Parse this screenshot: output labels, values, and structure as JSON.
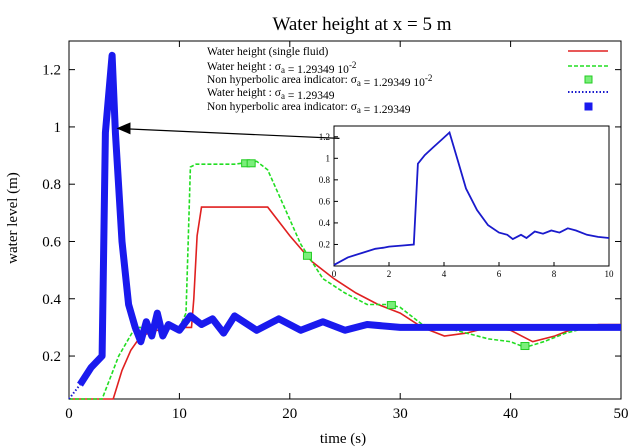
{
  "chart_data": {
    "type": "line",
    "title": "Water height at x = 5 m",
    "xlabel": "time (s)",
    "ylabel": "water level (m)",
    "xlim": [
      0,
      50
    ],
    "ylim": [
      0.05,
      1.3
    ],
    "xticks": [
      0,
      10,
      20,
      30,
      40,
      50
    ],
    "yticks": [
      0.2,
      0.4,
      0.6,
      0.8,
      1,
      1.2
    ],
    "xtick_labels": [
      "0",
      "10",
      "20",
      "30",
      "40",
      "50"
    ],
    "ytick_labels": [
      "0.2",
      "0.4",
      "0.6",
      "0.8",
      "1",
      "1.2"
    ],
    "legend_position": "top-right",
    "legend": [
      {
        "text": "Water height (single fluid)",
        "style": "solid",
        "color": "#e02020"
      },
      {
        "text": "Water height : σa = 1.29349 10^-2",
        "style": "dashed",
        "color": "#22dd22"
      },
      {
        "text": "Non hyperbolic area indicator: σa = 1.29349 10^-2",
        "style": "marker",
        "color": "#7bee7b"
      },
      {
        "text": "Water height : σa = 1.29349",
        "style": "dotted",
        "color": "#1a1acc"
      },
      {
        "text": "Non hyperbolic area indicator: σa = 1.29349",
        "style": "marker",
        "color": "#1a1aee"
      }
    ],
    "series": [
      {
        "name": "Water height (single fluid)",
        "color": "#e02020",
        "x": [
          0,
          4,
          4.8,
          5.6,
          6.5,
          8,
          10,
          11.1,
          11.3,
          11.6,
          12,
          14,
          16,
          18,
          20,
          22,
          24,
          26,
          28,
          30,
          32,
          34,
          36,
          38,
          40,
          42,
          44,
          46,
          48,
          50
        ],
        "y": [
          0.05,
          0.05,
          0.15,
          0.22,
          0.27,
          0.29,
          0.3,
          0.3,
          0.4,
          0.62,
          0.72,
          0.72,
          0.72,
          0.72,
          0.62,
          0.53,
          0.47,
          0.42,
          0.38,
          0.35,
          0.3,
          0.27,
          0.28,
          0.3,
          0.29,
          0.25,
          0.27,
          0.3,
          0.31,
          0.31
        ]
      },
      {
        "name": "Water height : σa = 1.29349 10^-2",
        "color": "#22dd22",
        "x": [
          0,
          3,
          4.5,
          6,
          8,
          10,
          10.6,
          10.8,
          11,
          11.5,
          13,
          15,
          17,
          18,
          19.5,
          21,
          23,
          25,
          27,
          29,
          30,
          32,
          34,
          36,
          38,
          40,
          41.3,
          43,
          45,
          47,
          50
        ],
        "y": [
          0.05,
          0.05,
          0.2,
          0.3,
          0.3,
          0.3,
          0.35,
          0.6,
          0.86,
          0.87,
          0.87,
          0.87,
          0.88,
          0.85,
          0.72,
          0.59,
          0.47,
          0.42,
          0.38,
          0.38,
          0.37,
          0.31,
          0.3,
          0.28,
          0.26,
          0.25,
          0.23,
          0.25,
          0.28,
          0.3,
          0.3
        ]
      },
      {
        "name": "Water height : σa = 1.29349",
        "color": "#1a1acc",
        "x": [
          0,
          1,
          2,
          3,
          3.3,
          3.9,
          4.2,
          4.8,
          5.4,
          6,
          6.5,
          7,
          7.5,
          8,
          8.5,
          9,
          10,
          11,
          12,
          13,
          14,
          15,
          17,
          19,
          21,
          23,
          25,
          27,
          30,
          33,
          36,
          40,
          44,
          47,
          50
        ],
        "y": [
          0.05,
          0.1,
          0.16,
          0.2,
          0.98,
          1.25,
          0.98,
          0.6,
          0.38,
          0.3,
          0.25,
          0.32,
          0.27,
          0.35,
          0.27,
          0.31,
          0.29,
          0.34,
          0.31,
          0.33,
          0.28,
          0.34,
          0.29,
          0.33,
          0.29,
          0.32,
          0.29,
          0.31,
          0.3,
          0.3,
          0.3,
          0.3,
          0.3,
          0.3,
          0.3
        ]
      }
    ],
    "markers": [
      {
        "series": "Non hyperbolic area indicator: σa = 1.29349 10^-2",
        "color": "#7bee7b",
        "x": [
          16,
          16.5,
          21.6,
          29.2,
          41.3
        ],
        "y": [
          0.873,
          0.873,
          0.55,
          0.378,
          0.235
        ]
      }
    ],
    "inset": {
      "type": "line",
      "xlim": [
        0,
        10
      ],
      "ylim": [
        0,
        1.3
      ],
      "xticks": [
        0,
        2,
        4,
        6,
        8,
        10
      ],
      "yticks": [
        0.2,
        0.4,
        0.6,
        0.8,
        1,
        1.2
      ],
      "xtick_labels": [
        "0",
        "2",
        "4",
        "6",
        "8",
        "10"
      ],
      "ytick_labels": [
        "0.2",
        "0.4",
        "0.6",
        "0.8",
        "1",
        "1.2"
      ],
      "color": "#1a1acc",
      "x": [
        0,
        0.5,
        1,
        1.5,
        1.8,
        2,
        2.5,
        2.9,
        3.05,
        3.3,
        3.6,
        3.9,
        4.2,
        4.5,
        4.8,
        5.2,
        5.6,
        6,
        6.3,
        6.5,
        6.8,
        7,
        7.3,
        7.6,
        7.9,
        8.2,
        8.5,
        8.8,
        9.2,
        9.6,
        10
      ],
      "y": [
        0.01,
        0.08,
        0.12,
        0.16,
        0.17,
        0.18,
        0.19,
        0.2,
        0.95,
        1.03,
        1.1,
        1.17,
        1.24,
        0.98,
        0.72,
        0.52,
        0.38,
        0.31,
        0.29,
        0.25,
        0.29,
        0.26,
        0.32,
        0.3,
        0.33,
        0.31,
        0.35,
        0.33,
        0.29,
        0.27,
        0.26
      ]
    },
    "annotation": {
      "type": "arrow",
      "from": [
        24.5,
        0.96
      ],
      "to": [
        4.3,
        0.995
      ]
    }
  }
}
